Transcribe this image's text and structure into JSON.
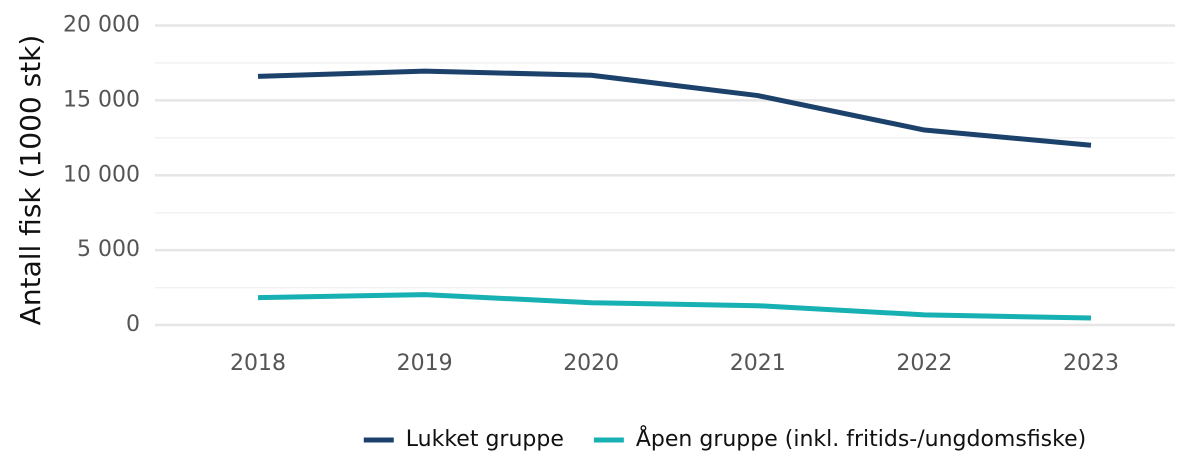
{
  "chart_data": {
    "type": "line",
    "y_label": "Antall fisk (1000 stk)",
    "categories": [
      "2018",
      "2019",
      "2020",
      "2021",
      "2022",
      "2023"
    ],
    "series": [
      {
        "name": "Lukket gruppe",
        "color": "#1c426c",
        "values": [
          16600,
          16950,
          16680,
          15320,
          13020,
          12000
        ]
      },
      {
        "name": "Åpen gruppe (inkl. fritids-/ungdomsfiske)",
        "color": "#17b0b3",
        "values": [
          1830,
          2030,
          1490,
          1290,
          680,
          470
        ]
      }
    ],
    "ylim": [
      -1000,
      20700
    ],
    "yticks": [
      0,
      {
        "value": 5000,
        "label": "5 000"
      },
      {
        "value": 10000,
        "label": "10 000"
      },
      {
        "value": 15000,
        "label": "15 000"
      },
      {
        "value": 20000,
        "label": "20 000"
      }
    ],
    "minor_yticks": [
      2500,
      7500,
      12500,
      17500
    ],
    "grid": true,
    "legend": "bottom"
  }
}
